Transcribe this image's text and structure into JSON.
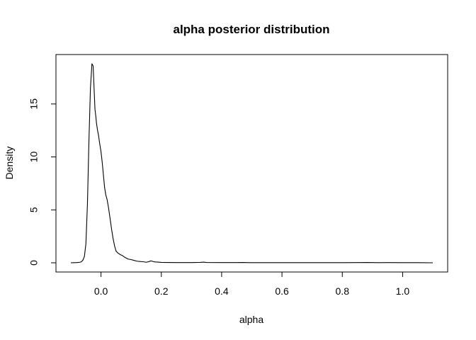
{
  "chart_data": {
    "type": "line",
    "title": "alpha posterior distribution",
    "xlabel": "alpha",
    "ylabel": "Density",
    "xlim": [
      -0.1,
      1.1
    ],
    "ylim": [
      0,
      18.8
    ],
    "xticks": [
      0.0,
      0.2,
      0.4,
      0.6,
      0.8,
      1.0
    ],
    "xtick_labels": [
      "0.0",
      "0.2",
      "0.4",
      "0.6",
      "0.8",
      "1.0"
    ],
    "yticks": [
      0,
      5,
      10,
      15
    ],
    "ytick_labels": [
      "0",
      "5",
      "10",
      "15"
    ],
    "grid": false,
    "legend": "none",
    "series": [
      {
        "x": [
          -0.1,
          -0.09,
          -0.08,
          -0.07,
          -0.065,
          -0.06,
          -0.055,
          -0.05,
          -0.045,
          -0.04,
          -0.035,
          -0.03,
          -0.026,
          -0.023,
          -0.02,
          -0.017,
          -0.015,
          -0.012,
          -0.008,
          -0.004,
          0.0,
          0.004,
          0.008,
          0.012,
          0.016,
          0.02,
          0.025,
          0.03,
          0.035,
          0.04,
          0.045,
          0.05,
          0.055,
          0.06,
          0.065,
          0.07,
          0.08,
          0.09,
          0.1,
          0.11,
          0.12,
          0.13,
          0.14,
          0.15,
          0.16,
          0.165,
          0.17,
          0.175,
          0.18,
          0.19,
          0.2,
          0.22,
          0.25,
          0.3,
          0.33,
          0.34,
          0.35,
          0.4,
          0.45,
          0.47,
          0.48,
          0.5,
          0.6,
          0.7,
          0.8,
          0.85,
          0.88,
          0.9,
          0.92,
          0.95,
          1.0,
          1.05,
          1.1
        ],
        "y": [
          0.0,
          0.01,
          0.02,
          0.05,
          0.1,
          0.25,
          0.6,
          1.8,
          5.5,
          11.5,
          16.5,
          18.8,
          18.6,
          16.5,
          14.5,
          13.8,
          13.2,
          12.6,
          12.0,
          11.2,
          10.5,
          9.5,
          8.3,
          7.1,
          6.4,
          6.0,
          5.2,
          4.2,
          3.2,
          2.3,
          1.6,
          1.1,
          0.95,
          0.85,
          0.75,
          0.7,
          0.5,
          0.35,
          0.3,
          0.22,
          0.15,
          0.12,
          0.1,
          0.05,
          0.12,
          0.18,
          0.15,
          0.1,
          0.08,
          0.06,
          0.04,
          0.03,
          0.02,
          0.02,
          0.04,
          0.06,
          0.03,
          0.02,
          0.02,
          0.03,
          0.02,
          0.01,
          0.01,
          0.01,
          0.01,
          0.02,
          0.03,
          0.02,
          0.01,
          0.02,
          0.01,
          0.01,
          0.0
        ]
      }
    ]
  }
}
